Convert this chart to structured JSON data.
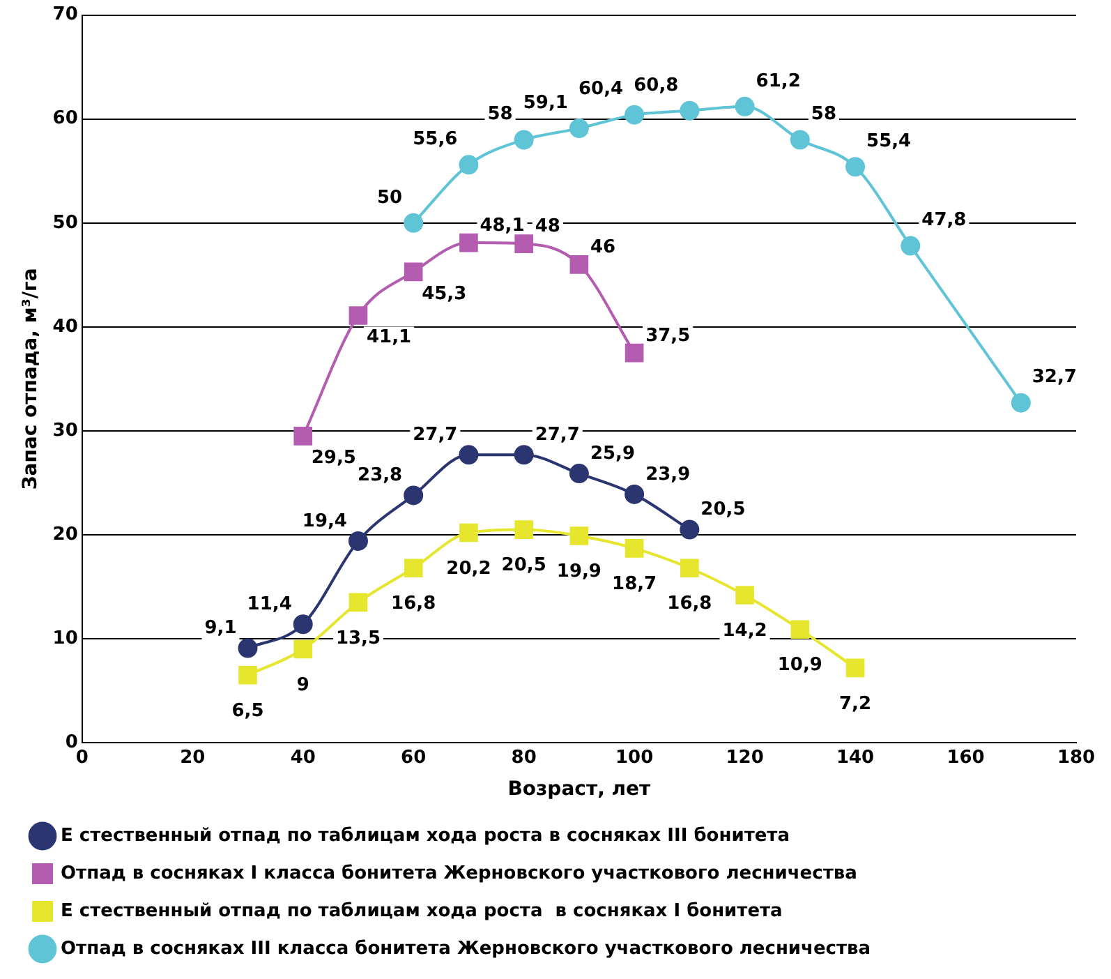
{
  "chart_data": {
    "type": "line",
    "xlabel": "Возраст, лет",
    "ylabel": "Запас отпада, м³/га",
    "xlim": [
      0,
      180
    ],
    "xticks": [
      0,
      20,
      40,
      60,
      80,
      100,
      120,
      140,
      160,
      180
    ],
    "ylim": [
      0,
      70
    ],
    "yticks": [
      0,
      10,
      20,
      30,
      40,
      50,
      60,
      70
    ],
    "grid": "y",
    "legend": "bottom",
    "series": [
      {
        "name": "Е стественный отпад по таблицам хода роста в сосняках III бонитета",
        "color": "#2b3570",
        "marker": "circle",
        "x": [
          30,
          40,
          50,
          60,
          70,
          80,
          90,
          100,
          110
        ],
        "values": [
          9.1,
          11.4,
          19.4,
          23.8,
          27.7,
          27.7,
          25.9,
          23.9,
          20.5
        ],
        "value_labels": [
          "9,1",
          "11,4",
          "19,4",
          "23,8",
          "27,7",
          "27,7",
          "25,9",
          "23,9",
          "20,5"
        ]
      },
      {
        "name": "Отпад в сосняках I класса бонитета Жерновского участкового лесничества",
        "color": "#b45cb0",
        "marker": "square",
        "x": [
          40,
          50,
          60,
          70,
          80,
          90,
          100
        ],
        "values": [
          29.5,
          41.1,
          45.3,
          48.1,
          48,
          46,
          37.5
        ],
        "value_labels": [
          "29,5",
          "41,1",
          "45,3",
          "48,1",
          "48",
          "46",
          "37,5"
        ]
      },
      {
        "name": "Е стественный отпад по таблицам хода роста  в сосняках I бонитета",
        "color": "#e6e62e",
        "marker": "square",
        "x": [
          30,
          40,
          50,
          60,
          70,
          80,
          90,
          100,
          110,
          120,
          130,
          140
        ],
        "values": [
          6.5,
          9,
          13.5,
          16.8,
          20.2,
          20.5,
          19.9,
          18.7,
          16.8,
          14.2,
          10.9,
          7.2
        ],
        "value_labels": [
          "6,5",
          "9",
          "13,5",
          "16,8",
          "20,2",
          "20,5",
          "19,9",
          "18,7",
          "16,8",
          "14,2",
          "10,9",
          "7,2"
        ]
      },
      {
        "name": "Отпад в сосняках III класса бонитета Жерновского участкового лесничества",
        "color": "#5ec4d6",
        "marker": "circle",
        "x": [
          60,
          70,
          80,
          90,
          100,
          110,
          120,
          130,
          140,
          150,
          170
        ],
        "values": [
          50,
          55.6,
          58,
          59.1,
          60.4,
          60.8,
          61.2,
          58,
          55.4,
          47.8,
          32.7
        ],
        "value_labels": [
          "50",
          "55,6",
          "58",
          "59,1",
          "60,4",
          "60,8",
          "61,2",
          "58",
          "55,4",
          "47,8",
          "32,7"
        ]
      }
    ]
  }
}
